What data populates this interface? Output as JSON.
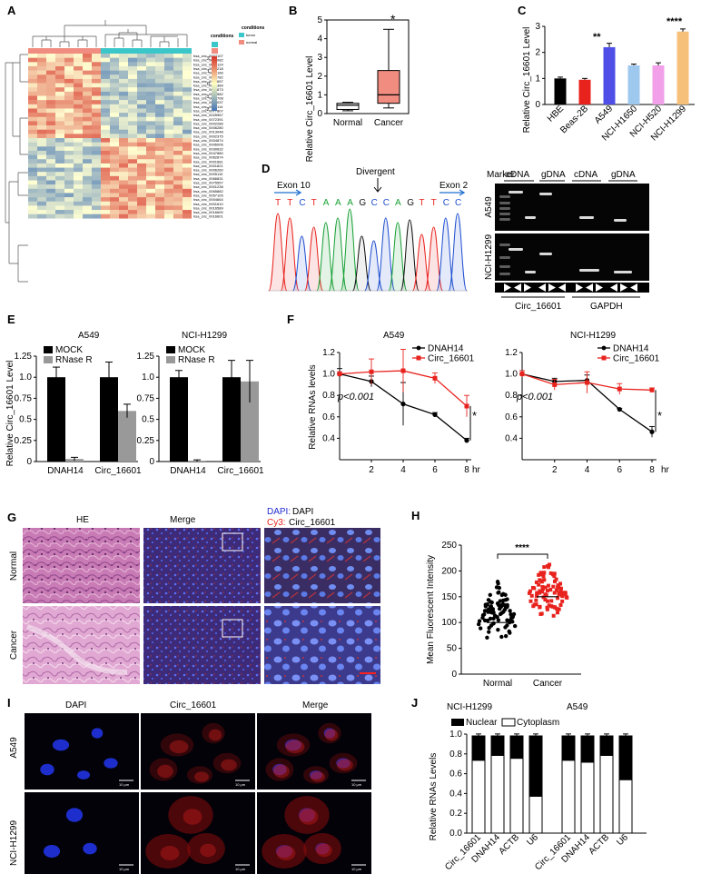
{
  "panels": {
    "A": {
      "label": "A",
      "legend_title": "conditions",
      "legend_title2": "conditions",
      "groups": [
        "tumor",
        "normal"
      ],
      "colorbar_ticks": [
        "2",
        "1",
        "0",
        "-1",
        "-2"
      ],
      "row_labels": [
        "hsa_circ_0007107",
        "hsa_circ_0004082",
        "hsa_circ_0004124",
        "hsa_circ_0003218",
        "hsa_circ_0052166",
        "hsa_circ_0022782",
        "hsa_circ_0005657",
        "hsa_circ_0008389",
        "hsa_circ_0061873",
        "hsa_circ_0027582",
        "hsa_circ_0064708",
        "hsa_circ_0005037",
        "hsa_circ_0066114",
        "hsa_circ_0077807",
        "hsa_circ_0025967",
        "hsa_circ_0072391",
        "hsa_circ_0002286",
        "hsa_circ_0006280",
        "hsa_circ_0013048",
        "hsa_circ_0002375",
        "hsa_circ_0004874",
        "hsa_circ_0006006",
        "hsa_circ_0030632",
        "hsa_circ_0047880",
        "hsa_circ_0062874",
        "hsa_circ_0001681",
        "hsa_circ_0001821",
        "hsa_circ_0006260",
        "hsa_circ_0005110",
        "hsa_circ_0066831",
        "hsa_circ_0075557",
        "hsa_circ_0001238",
        "hsa_circ_0065882",
        "hsa_circ_0057105",
        "hsa_circ_0004664",
        "hsa_circ_0001610",
        "hsa_circ_0016589",
        "hsa_circ_0016600",
        "hsa_circ_0016601"
      ]
    },
    "B": {
      "label": "B",
      "ylabel": "Relative Circ_16601  Level",
      "star": "*"
    },
    "C": {
      "label": "C",
      "ylabel": "Relative Circ_16601  Level",
      "stars": [
        "**",
        "****"
      ]
    },
    "D": {
      "label": "D",
      "exon_left": "Exon 10",
      "exon_right": "Exon 2",
      "divergent": "Divergent",
      "sequence": [
        "T",
        "T",
        "C",
        "T",
        "A",
        "A",
        "A",
        "G",
        "C",
        "C",
        "A",
        "G",
        "T",
        "T",
        "C",
        "C"
      ],
      "marker": "Marker",
      "lanes": [
        "cDNA",
        "gDNA",
        "cDNA",
        "gDNA"
      ],
      "row_labels": [
        "A549",
        "NCI-H1299"
      ],
      "genes": [
        "Circ_16601",
        "GAPDH"
      ]
    },
    "E": {
      "label": "E",
      "ylabel": "Relative Circ_16601  Level",
      "titles": [
        "A549",
        "NCI-H1299"
      ]
    },
    "F": {
      "label": "F",
      "ylabel": "Relative RNAs levels",
      "titles": [
        "A549",
        "NCI-H1299"
      ],
      "pval": "p<0.001",
      "star": "*",
      "xunit": "hr"
    },
    "G": {
      "label": "G",
      "col_titles": [
        "HE",
        "Merge"
      ],
      "dapi_label": "DAPI:",
      "dapi_text": "DAPI",
      "cy3_label": "Cy3:",
      "cy3_text": "Circ_16601",
      "row_labels": [
        "Normal",
        "Cancer"
      ]
    },
    "H": {
      "label": "H",
      "star": "****"
    },
    "I": {
      "label": "I",
      "col_titles": [
        "DAPI",
        "Circ_16601",
        "Merge"
      ],
      "row_labels": [
        "A549",
        "NCI-H1299"
      ],
      "scale": "10 μm"
    },
    "J": {
      "label": "J",
      "ylabel": "Relative RNAs Levels",
      "titles": [
        "NCI-H1299",
        "A549"
      ],
      "legend": [
        "Nuclear",
        "Cytoplasm"
      ]
    }
  },
  "colors": {
    "tumor": "#3bc7c9",
    "normal": "#f08c80",
    "heat_high": "#d73027",
    "heat_mid": "#ffffbf",
    "heat_low": "#4575b4",
    "mock": "#000000",
    "rnase": "#999999",
    "dnah14": "#000000",
    "circ": "#e8231e",
    "cancer_dots": "#e8231e",
    "normal_dots": "#000000"
  },
  "chart_data": [
    {
      "panel": "B",
      "type": "box",
      "categories": [
        "Normal",
        "Cancer"
      ],
      "boxes": [
        {
          "min": 0.15,
          "q1": 0.22,
          "median": 0.45,
          "q3": 0.55,
          "max": 0.6,
          "fill": "#ffffff"
        },
        {
          "min": 0.3,
          "q1": 0.55,
          "median": 1.0,
          "q3": 2.3,
          "max": 4.5,
          "fill": "#f08c80"
        }
      ],
      "ylim": [
        0,
        5
      ],
      "yticks": [
        0,
        1,
        2,
        3,
        4,
        5
      ]
    },
    {
      "panel": "C",
      "type": "bar",
      "categories": [
        "HBE",
        "Beas-2B",
        "A549",
        "NCI-H1650",
        "NCI-H520",
        "NCI-H1299"
      ],
      "values": [
        1.0,
        0.95,
        2.2,
        1.5,
        1.5,
        2.8
      ],
      "errors": [
        0.05,
        0.05,
        0.15,
        0.05,
        0.1,
        0.1
      ],
      "colors": [
        "#000000",
        "#e8231e",
        "#4f4fe8",
        "#9fc8ef",
        "#f2a0ea",
        "#f7c07a"
      ],
      "ylim": [
        0,
        3
      ],
      "yticks": [
        0,
        1,
        2,
        3
      ]
    },
    {
      "panel": "E",
      "type": "bar",
      "title": "A549",
      "categories": [
        "DNAH14",
        "Circ_16601"
      ],
      "series": [
        {
          "name": "MOCK",
          "values": [
            1.0,
            1.0
          ],
          "errors": [
            0.12,
            0.18
          ]
        },
        {
          "name": "RNase R",
          "values": [
            0.03,
            0.6
          ],
          "errors": [
            0.02,
            0.08
          ]
        }
      ],
      "ylim": [
        0,
        1.25
      ],
      "yticks": [
        0,
        0.25,
        0.5,
        0.75,
        1.0,
        1.25
      ]
    },
    {
      "panel": "E",
      "type": "bar",
      "title": "NCI-H1299",
      "categories": [
        "DNAH14",
        "Circ_16601"
      ],
      "series": [
        {
          "name": "MOCK",
          "values": [
            1.0,
            1.0
          ],
          "errors": [
            0.08,
            0.2
          ]
        },
        {
          "name": "RNase R",
          "values": [
            0.01,
            0.95
          ],
          "errors": [
            0.01,
            0.25
          ]
        }
      ],
      "ylim": [
        0,
        1.25
      ],
      "yticks": [
        0,
        0.25,
        0.5,
        0.75,
        1.0,
        1.25
      ]
    },
    {
      "panel": "F",
      "type": "line",
      "title": "A549",
      "x": [
        0,
        2,
        4,
        6,
        8
      ],
      "series": [
        {
          "name": "DNAH14",
          "values": [
            1.0,
            0.93,
            0.72,
            0.62,
            0.38
          ],
          "errors": [
            0.05,
            0.05,
            0.2,
            0.02,
            0.02
          ]
        },
        {
          "name": "Circ_16601",
          "values": [
            1.0,
            1.02,
            1.03,
            0.96,
            0.7
          ],
          "errors": [
            0.02,
            0.12,
            0.2,
            0.05,
            0.1
          ]
        }
      ],
      "xticks": [
        2,
        4,
        6,
        8
      ],
      "ylim": [
        0.2,
        1.2
      ],
      "yticks": [
        0.4,
        0.6,
        0.8,
        1.0,
        1.2
      ]
    },
    {
      "panel": "F",
      "type": "line",
      "title": "NCI-H1299",
      "x": [
        0,
        2,
        4,
        6,
        8
      ],
      "series": [
        {
          "name": "DNAH14",
          "values": [
            1.0,
            0.93,
            0.94,
            0.67,
            0.46
          ],
          "errors": [
            0.03,
            0.03,
            0.05,
            0.01,
            0.05
          ]
        },
        {
          "name": "Circ_16601",
          "values": [
            1.0,
            0.9,
            0.92,
            0.86,
            0.85
          ],
          "errors": [
            0.03,
            0.05,
            0.1,
            0.05,
            0.02
          ]
        }
      ],
      "xticks": [
        2,
        4,
        6,
        8
      ],
      "ylim": [
        0.2,
        1.2
      ],
      "yticks": [
        0.4,
        0.6,
        0.8,
        1.0,
        1.2
      ]
    },
    {
      "panel": "H",
      "type": "scatter",
      "ylabel": "Mean Fluorescent Intensity",
      "categories": [
        "Normal",
        "Cancer"
      ],
      "means": [
        100,
        150
      ],
      "ranges": [
        [
          45,
          190
        ],
        [
          95,
          225
        ]
      ],
      "ylim": [
        0,
        250
      ],
      "yticks": [
        0,
        50,
        100,
        150,
        200,
        250
      ]
    },
    {
      "panel": "J",
      "type": "bar",
      "categories": [
        "Circ_16601",
        "DNAH14",
        "ACTB",
        "U6",
        "Circ_16601",
        "DNAH14",
        "ACTB",
        "U6"
      ],
      "series": [
        {
          "name": "Cytoplasm",
          "values": [
            0.75,
            0.8,
            0.77,
            0.38,
            0.75,
            0.73,
            0.8,
            0.55
          ]
        },
        {
          "name": "Nuclear",
          "values": [
            0.25,
            0.2,
            0.23,
            0.62,
            0.25,
            0.27,
            0.2,
            0.45
          ]
        }
      ],
      "ylim": [
        0,
        1.0
      ],
      "yticks": [
        0,
        0.2,
        0.4,
        0.6,
        0.8,
        1.0
      ]
    }
  ]
}
